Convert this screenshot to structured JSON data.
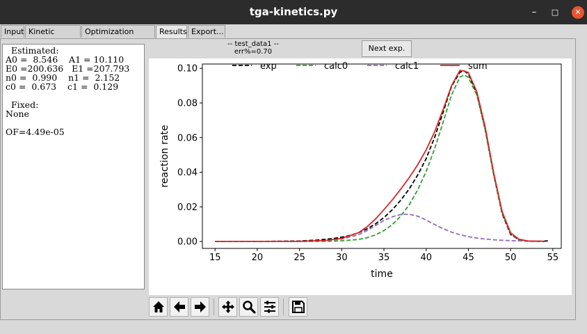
{
  "window": {
    "title": "tga-kinetics.py",
    "min_label": "–",
    "max_label": "□",
    "close_label": "✕"
  },
  "tabs": [
    {
      "label": "Input"
    },
    {
      "label": "Kinetic options"
    },
    {
      "label": "Optimization options"
    },
    {
      "label": "Results"
    },
    {
      "label": "Export..."
    }
  ],
  "active_tab": "Results",
  "results": {
    "lines": [
      "  Estimated:",
      "A0 =  8.546    A1 = 10.110",
      "E0 =200.636   E1 =207.793",
      "n0 =  0.990    n1 =  2.152",
      "c0 =  0.673    c1 =  0.129",
      "",
      "  Fixed:",
      "None",
      "",
      "OF=4.49e-05"
    ]
  },
  "header": {
    "dataset": "-- test_data1 --",
    "err": "err%=0.70"
  },
  "next_button": "Next exp.",
  "toolbar": {
    "buttons": [
      {
        "name": "home-icon"
      },
      {
        "name": "back-arrow-icon"
      },
      {
        "name": "forward-arrow-icon"
      },
      {
        "name": "pan-icon"
      },
      {
        "name": "zoom-icon"
      },
      {
        "name": "configure-subplots-icon"
      },
      {
        "name": "save-icon"
      }
    ]
  },
  "chart_data": {
    "type": "line",
    "xlabel": "time",
    "ylabel": "reaction rate",
    "xlim": [
      13.5,
      56
    ],
    "ylim": [
      -0.004,
      0.1025
    ],
    "xticks": [
      15,
      20,
      25,
      30,
      35,
      40,
      45,
      50,
      55
    ],
    "yticks": [
      0.0,
      0.02,
      0.04,
      0.06,
      0.08,
      0.1
    ],
    "ytick_labels": [
      "0.00",
      "0.02",
      "0.04",
      "0.06",
      "0.08",
      "0.10"
    ],
    "legend": "top",
    "series": [
      {
        "name": "exp",
        "color": "#000000",
        "dash": "6,3",
        "x": [
          15,
          20,
          25,
          27,
          29,
          30,
          31,
          32,
          33,
          34,
          35,
          36,
          37,
          38,
          39,
          40,
          41,
          42,
          43,
          44,
          44.5,
          45,
          46,
          47,
          48,
          49,
          50,
          51,
          52,
          53,
          54,
          54.5
        ],
        "y": [
          0,
          0,
          0.0003,
          0.0008,
          0.0017,
          0.0025,
          0.0035,
          0.0051,
          0.0073,
          0.0102,
          0.0138,
          0.0184,
          0.0239,
          0.0304,
          0.0384,
          0.0478,
          0.0601,
          0.0745,
          0.0895,
          0.0978,
          0.0985,
          0.0968,
          0.0855,
          0.0645,
          0.0385,
          0.016,
          0.004,
          0.001,
          0.0003,
          0.0001,
          0.0002,
          0.0004
        ]
      },
      {
        "name": "calc0",
        "color": "#2ca02c",
        "dash": "6,3",
        "x": [
          15,
          25,
          28,
          30,
          32,
          33,
          34,
          35,
          36,
          37,
          38,
          39,
          40,
          41,
          42,
          43,
          44,
          44.5,
          45,
          46,
          47,
          48,
          49,
          50,
          51,
          52,
          54
        ],
        "y": [
          0,
          0,
          0.0001,
          0.0004,
          0.0012,
          0.0022,
          0.0038,
          0.0063,
          0.0098,
          0.0147,
          0.0213,
          0.0298,
          0.0405,
          0.0535,
          0.0687,
          0.0846,
          0.0949,
          0.0962,
          0.0948,
          0.0845,
          0.0645,
          0.0385,
          0.0165,
          0.0045,
          0.0008,
          0.0001,
          0
        ]
      },
      {
        "name": "calc1",
        "color": "#9467bd",
        "dash": "6,3",
        "x": [
          15,
          25,
          28,
          30,
          32,
          33,
          34,
          35,
          36,
          37,
          38,
          39,
          40,
          41,
          42,
          43,
          44,
          45,
          46,
          47,
          48,
          49,
          50,
          52,
          54
        ],
        "y": [
          0,
          0.0001,
          0.0005,
          0.0014,
          0.0039,
          0.0063,
          0.0092,
          0.0121,
          0.0143,
          0.0156,
          0.0157,
          0.0146,
          0.0124,
          0.0098,
          0.0074,
          0.0054,
          0.0039,
          0.0028,
          0.002,
          0.0014,
          0.001,
          0.0007,
          0.0005,
          0.0002,
          0.0001
        ]
      },
      {
        "name": "sum",
        "color": "#d62728",
        "dash": "",
        "x": [
          15,
          25,
          28,
          30,
          32,
          33,
          34,
          35,
          36,
          37,
          38,
          39,
          40,
          41,
          42,
          43,
          44,
          44.5,
          45,
          46,
          47,
          48,
          49,
          50,
          51,
          52,
          54
        ],
        "y": [
          0,
          0.0001,
          0.0006,
          0.0018,
          0.0051,
          0.0085,
          0.013,
          0.0184,
          0.0241,
          0.0303,
          0.037,
          0.0444,
          0.0529,
          0.0633,
          0.0761,
          0.09,
          0.0988,
          0.0985,
          0.0976,
          0.0865,
          0.0659,
          0.0395,
          0.0172,
          0.005,
          0.0013,
          0.0003,
          0.0001
        ]
      }
    ]
  }
}
